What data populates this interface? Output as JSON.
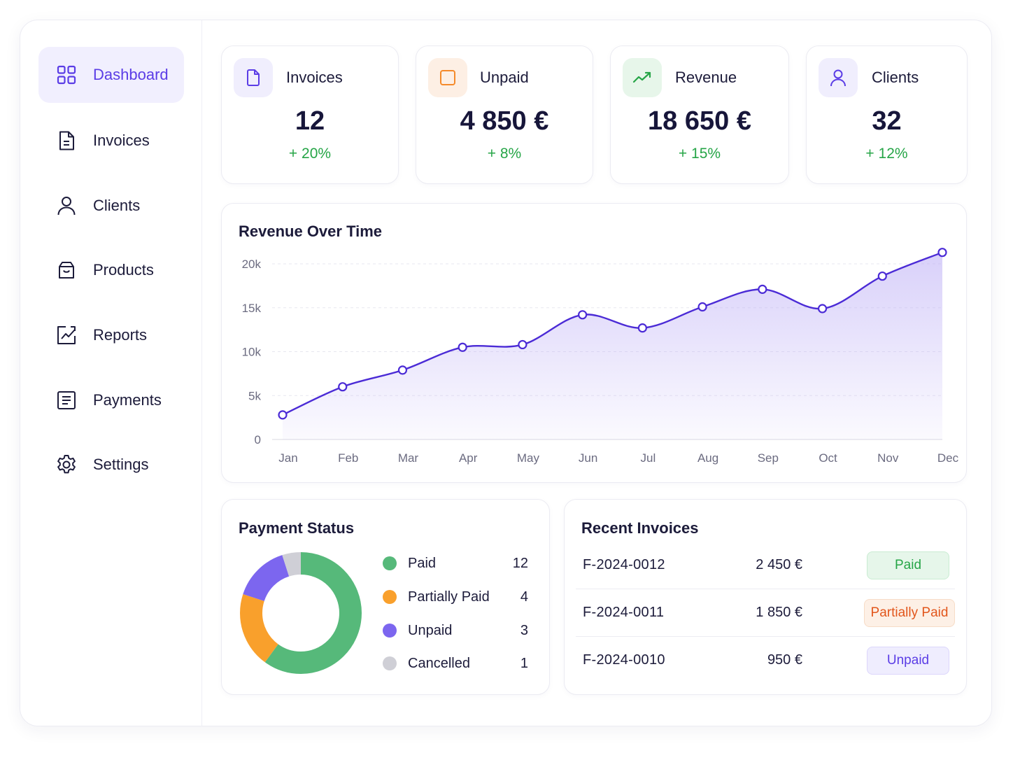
{
  "sidebar": {
    "items": [
      {
        "label": "Dashboard",
        "icon": "grid-icon",
        "active": true
      },
      {
        "label": "Invoices",
        "icon": "document-icon"
      },
      {
        "label": "Clients",
        "icon": "user-icon"
      },
      {
        "label": "Products",
        "icon": "box-icon"
      },
      {
        "label": "Reports",
        "icon": "trend-chart-icon"
      },
      {
        "label": "Payments",
        "icon": "receipt-icon"
      },
      {
        "label": "Settings",
        "icon": "gear-icon"
      }
    ]
  },
  "stats": [
    {
      "title": "Invoices",
      "value": "12",
      "delta": "+ 20%",
      "icon": "file-icon",
      "icon_color": "#5b3de6",
      "icon_bg": "#f0eefd"
    },
    {
      "title": "Unpaid",
      "value": "4 850 €",
      "delta": "+ 8%",
      "icon": "square-icon",
      "icon_color": "#f58a2a",
      "icon_bg": "#fdefe4"
    },
    {
      "title": "Revenue",
      "value": "18 650 €",
      "delta": "+ 15%",
      "icon": "trending-up-icon",
      "icon_color": "#26a547",
      "icon_bg": "#e7f6ea"
    },
    {
      "title": "Clients",
      "value": "32",
      "delta": "+ 12%",
      "icon": "user-icon",
      "icon_color": "#5b3de6",
      "icon_bg": "#f0eefd"
    }
  ],
  "revenue_chart": {
    "title": "Revenue Over Time"
  },
  "payment_status": {
    "title": "Payment Status",
    "items": [
      {
        "label": "Paid",
        "count": "12",
        "color": "#56b97a"
      },
      {
        "label": "Partially Paid",
        "count": "4",
        "color": "#f9a02c"
      },
      {
        "label": "Unpaid",
        "count": "3",
        "color": "#7c66ef"
      },
      {
        "label": "Cancelled",
        "count": "1",
        "color": "#cfcfd6"
      }
    ]
  },
  "recent_invoices": {
    "title": "Recent Invoices",
    "rows": [
      {
        "id": "F-2024-0012",
        "amount": "2 450 €",
        "status": "Paid"
      },
      {
        "id": "F-2024-0011",
        "amount": "1 850 €",
        "status": "Partially Paid"
      },
      {
        "id": "F-2024-0010",
        "amount": "950 €",
        "status": "Unpaid"
      }
    ]
  },
  "colors": {
    "accent": "#5b3de6",
    "positive": "#26a547",
    "line": "#4b2bd6",
    "area": "#b9aaf5"
  },
  "chart_data": [
    {
      "type": "area",
      "title": "Revenue Over Time",
      "categories": [
        "Jan",
        "Feb",
        "Mar",
        "Apr",
        "May",
        "Jun",
        "Jul",
        "Aug",
        "Sep",
        "Oct",
        "Nov",
        "Dec"
      ],
      "values": [
        2800,
        6000,
        7900,
        10500,
        10800,
        14200,
        12700,
        15100,
        17100,
        14900,
        18600,
        21300
      ],
      "ylim": [
        0,
        20000
      ],
      "yticks": [
        0,
        5000,
        10000,
        15000,
        20000
      ],
      "ytick_labels": [
        "0",
        "5k",
        "10k",
        "15k",
        "20k"
      ],
      "grid": true
    },
    {
      "type": "pie",
      "title": "Payment Status",
      "labels": [
        "Paid",
        "Partially Paid",
        "Unpaid",
        "Cancelled"
      ],
      "values": [
        12,
        4,
        3,
        1
      ],
      "colors": [
        "#56b97a",
        "#f9a02c",
        "#7c66ef",
        "#cfcfd6"
      ]
    }
  ]
}
